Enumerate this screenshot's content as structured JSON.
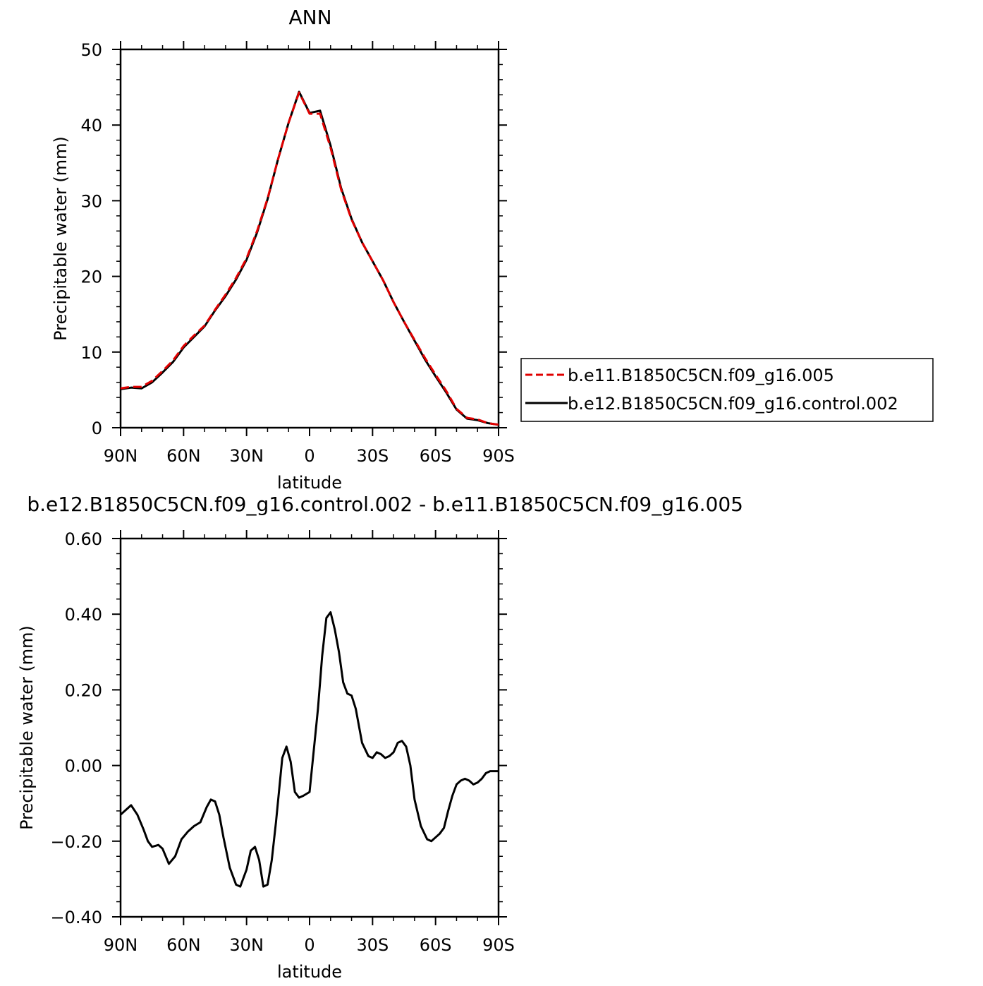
{
  "chart_data": [
    {
      "type": "line",
      "title": "ANN",
      "xlabel": "latitude",
      "ylabel": "Precipitable water (mm)",
      "xlim": [
        90,
        -90
      ],
      "ylim": [
        0,
        50
      ],
      "xticks": [
        90,
        60,
        30,
        0,
        -30,
        -60,
        -90
      ],
      "xtick_labels": [
        "90N",
        "60N",
        "30N",
        "0",
        "30S",
        "60S",
        "90S"
      ],
      "yticks": [
        0,
        10,
        20,
        30,
        40,
        50
      ],
      "ytick_labels": [
        "0",
        "10",
        "20",
        "30",
        "40",
        "50"
      ],
      "legend": {
        "placement": "right"
      },
      "series": [
        {
          "name": "b.e11.B1850C5CN.f09_g16.005",
          "color": "#e00000",
          "dash": "dashed",
          "x": [
            90,
            85,
            80,
            75,
            70,
            65,
            60,
            55,
            50,
            45,
            40,
            35,
            30,
            25,
            20,
            15,
            10,
            5,
            0,
            -5,
            -10,
            -15,
            -20,
            -25,
            -30,
            -35,
            -40,
            -45,
            -50,
            -55,
            -60,
            -65,
            -70,
            -75,
            -80,
            -85,
            -90
          ],
          "y": [
            5.2,
            5.4,
            5.4,
            6.2,
            7.5,
            8.9,
            10.8,
            12.2,
            13.5,
            15.6,
            17.6,
            19.8,
            22.4,
            26.0,
            30.3,
            35.5,
            40.3,
            44.3,
            41.5,
            41.5,
            37.0,
            31.5,
            27.5,
            24.5,
            22.0,
            19.5,
            16.6,
            14.0,
            11.6,
            9.2,
            7.0,
            4.9,
            2.5,
            1.3,
            1.1,
            0.6,
            0.4
          ]
        },
        {
          "name": "b.e12.B1850C5CN.f09_g16.control.002",
          "color": "#000000",
          "dash": "solid",
          "x": [
            90,
            85,
            80,
            75,
            70,
            65,
            60,
            55,
            50,
            45,
            40,
            35,
            30,
            25,
            20,
            15,
            10,
            5,
            0,
            -5,
            -10,
            -15,
            -20,
            -25,
            -30,
            -35,
            -40,
            -45,
            -50,
            -55,
            -60,
            -65,
            -70,
            -75,
            -80,
            -85,
            -90
          ],
          "y": [
            5.1,
            5.3,
            5.2,
            6.0,
            7.3,
            8.7,
            10.6,
            12.0,
            13.4,
            15.5,
            17.4,
            19.6,
            22.2,
            25.8,
            30.2,
            35.5,
            40.3,
            44.4,
            41.6,
            41.9,
            37.3,
            31.7,
            27.6,
            24.5,
            22.0,
            19.5,
            16.6,
            14.0,
            11.5,
            9.0,
            6.8,
            4.7,
            2.4,
            1.2,
            1.0,
            0.6,
            0.4
          ]
        }
      ]
    },
    {
      "type": "line",
      "title": "b.e12.B1850C5CN.f09_g16.control.002 - b.e11.B1850C5CN.f09_g16.005",
      "xlabel": "latitude",
      "ylabel": "Precipitable water (mm)",
      "xlim": [
        90,
        -90
      ],
      "ylim": [
        -0.4,
        0.6
      ],
      "xticks": [
        90,
        60,
        30,
        0,
        -30,
        -60,
        -90
      ],
      "xtick_labels": [
        "90N",
        "60N",
        "30N",
        "0",
        "30S",
        "60S",
        "90S"
      ],
      "yticks": [
        -0.4,
        -0.2,
        0.0,
        0.2,
        0.4,
        0.6
      ],
      "ytick_labels": [
        "−0.40",
        "−0.20",
        "0.00",
        "0.20",
        "0.40",
        "0.60"
      ],
      "series": [
        {
          "color": "#000000",
          "x": [
            90,
            88,
            85,
            82,
            79,
            77,
            75,
            72,
            70,
            67,
            64,
            61,
            58,
            55,
            52,
            49,
            47,
            45,
            43,
            41,
            38,
            35,
            33,
            30,
            28,
            26,
            24,
            22,
            20,
            18,
            16,
            13,
            11,
            9,
            7,
            5,
            3,
            0,
            -2,
            -4,
            -6,
            -8,
            -10,
            -12,
            -14,
            -16,
            -18,
            -20,
            -22,
            -25,
            -28,
            -30,
            -32,
            -34,
            -36,
            -38,
            -40,
            -42,
            -44,
            -46,
            -48,
            -50,
            -53,
            -56,
            -58,
            -60,
            -62,
            -64,
            -66,
            -68,
            -70,
            -72,
            -74,
            -76,
            -78,
            -80,
            -82,
            -84,
            -86,
            -88,
            -90
          ],
          "y": [
            -0.13,
            -0.12,
            -0.105,
            -0.13,
            -0.17,
            -0.2,
            -0.215,
            -0.21,
            -0.22,
            -0.26,
            -0.24,
            -0.195,
            -0.175,
            -0.16,
            -0.15,
            -0.11,
            -0.09,
            -0.095,
            -0.13,
            -0.19,
            -0.27,
            -0.315,
            -0.32,
            -0.275,
            -0.225,
            -0.215,
            -0.25,
            -0.32,
            -0.315,
            -0.25,
            -0.15,
            0.02,
            0.05,
            0.01,
            -0.07,
            -0.085,
            -0.08,
            -0.07,
            0.04,
            0.15,
            0.29,
            0.39,
            0.405,
            0.36,
            0.3,
            0.22,
            0.19,
            0.185,
            0.15,
            0.06,
            0.025,
            0.02,
            0.035,
            0.03,
            0.02,
            0.025,
            0.035,
            0.06,
            0.065,
            0.05,
            0.0,
            -0.09,
            -0.16,
            -0.195,
            -0.2,
            -0.19,
            -0.18,
            -0.165,
            -0.12,
            -0.08,
            -0.05,
            -0.04,
            -0.035,
            -0.04,
            -0.05,
            -0.045,
            -0.035,
            -0.02,
            -0.015,
            -0.015,
            -0.015
          ]
        }
      ]
    }
  ]
}
